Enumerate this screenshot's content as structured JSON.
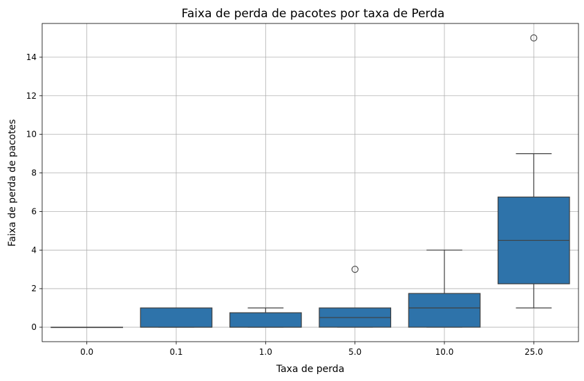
{
  "chart_data": {
    "type": "box",
    "title": "Faixa de perda de pacotes por taxa de Perda",
    "xlabel": "Taxa de perda",
    "ylabel": "Faixa de perda de pacotes",
    "categories": [
      "0.0",
      "0.1",
      "1.0",
      "5.0",
      "10.0",
      "25.0"
    ],
    "yticks": [
      0,
      2,
      4,
      6,
      8,
      10,
      12,
      14
    ],
    "ylim": [
      -0.75,
      15.75
    ],
    "grid": true,
    "color": "#2e73aa",
    "boxes": [
      {
        "category": "0.0",
        "whislo": 0,
        "q1": 0,
        "median": 0,
        "q3": 0,
        "whishi": 0,
        "fliers": []
      },
      {
        "category": "0.1",
        "whislo": 0,
        "q1": 0,
        "median": 0,
        "q3": 1,
        "whishi": 1,
        "fliers": []
      },
      {
        "category": "1.0",
        "whislo": 0,
        "q1": 0,
        "median": 0,
        "q3": 0.75,
        "whishi": 1,
        "fliers": []
      },
      {
        "category": "5.0",
        "whislo": 0,
        "q1": 0,
        "median": 0.5,
        "q3": 1,
        "whishi": 1,
        "fliers": [
          3
        ]
      },
      {
        "category": "10.0",
        "whislo": 0,
        "q1": 0,
        "median": 1,
        "q3": 1.75,
        "whishi": 4,
        "fliers": []
      },
      {
        "category": "25.0",
        "whislo": 1,
        "q1": 2.25,
        "median": 4.5,
        "q3": 6.75,
        "whishi": 9,
        "fliers": [
          15
        ]
      }
    ]
  }
}
